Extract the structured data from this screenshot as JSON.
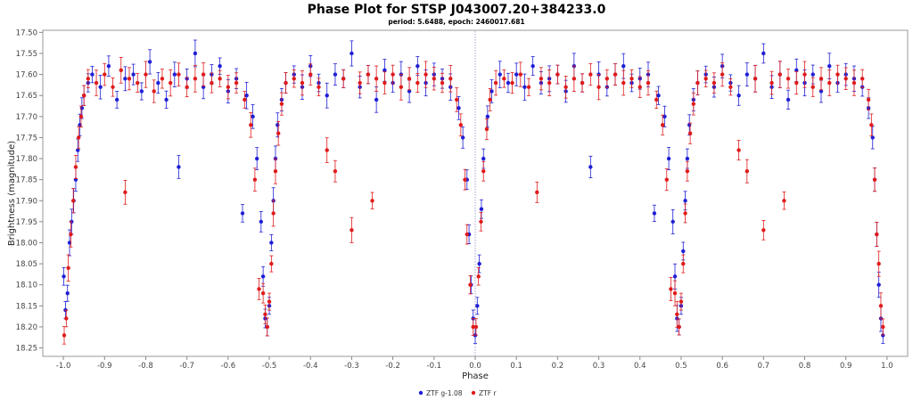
{
  "chart_data": {
    "type": "scatter",
    "title": "Phase Plot for STSP J043007.20+384233.0",
    "subtitle": "period: 5.6488, epoch: 2460017.681",
    "xlabel": "Phase",
    "ylabel": "Brightness (magnitude)",
    "xlim": [
      -1.05,
      1.05
    ],
    "ylim": [
      18.27,
      17.495
    ],
    "y_inverted": true,
    "x_ticks": [
      -1.0,
      -0.9,
      -0.8,
      -0.7,
      -0.6,
      -0.5,
      -0.4,
      -0.3,
      -0.2,
      -0.1,
      0.0,
      0.1,
      0.2,
      0.3,
      0.4,
      0.5,
      0.6,
      0.7,
      0.8,
      0.9,
      1.0
    ],
    "x_tick_labels": [
      "-1.0",
      "-0.9",
      "-0.8",
      "-0.7",
      "-0.6",
      "-0.5",
      "-0.4",
      "-0.3",
      "-0.2",
      "-0.1",
      "0.0",
      "0.1",
      "0.2",
      "0.3",
      "0.4",
      "0.5",
      "0.6",
      "0.7",
      "0.8",
      "0.9",
      "1.0"
    ],
    "y_ticks": [
      17.5,
      17.55,
      17.6,
      17.65,
      17.7,
      17.75,
      17.8,
      17.85,
      17.9,
      17.95,
      18.0,
      18.05,
      18.1,
      18.15,
      18.2,
      18.25
    ],
    "y_tick_labels": [
      "17.50",
      "17.55",
      "17.60",
      "17.65",
      "17.70",
      "17.75",
      "17.80",
      "17.85",
      "17.90",
      "17.95",
      "18.00",
      "18.05",
      "18.10",
      "18.15",
      "18.20",
      "18.25"
    ],
    "grid": false,
    "reference_line_x": 0.0,
    "legend_position": "bottom-center",
    "error_bars": true,
    "series": [
      {
        "name": "ZTF g-1.08",
        "color": "#1f1fd6",
        "points": [
          [
            -0.999,
            18.08
          ],
          [
            -0.995,
            18.16
          ],
          [
            -0.99,
            18.12
          ],
          [
            -0.985,
            18.0
          ],
          [
            -0.98,
            17.95
          ],
          [
            -0.975,
            17.9
          ],
          [
            -0.97,
            17.85
          ],
          [
            -0.965,
            17.78
          ],
          [
            -0.96,
            17.72
          ],
          [
            -0.955,
            17.68
          ],
          [
            -0.95,
            17.65
          ],
          [
            -0.94,
            17.62
          ],
          [
            -0.93,
            17.6
          ],
          [
            -0.91,
            17.63
          ],
          [
            -0.89,
            17.58
          ],
          [
            -0.87,
            17.66
          ],
          [
            -0.85,
            17.61
          ],
          [
            -0.83,
            17.6
          ],
          [
            -0.81,
            17.64
          ],
          [
            -0.79,
            17.57
          ],
          [
            -0.77,
            17.62
          ],
          [
            -0.75,
            17.66
          ],
          [
            -0.73,
            17.6
          ],
          [
            -0.72,
            17.82
          ],
          [
            -0.7,
            17.61
          ],
          [
            -0.68,
            17.55
          ],
          [
            -0.66,
            17.63
          ],
          [
            -0.64,
            17.6
          ],
          [
            -0.62,
            17.58
          ],
          [
            -0.6,
            17.64
          ],
          [
            -0.58,
            17.61
          ],
          [
            -0.565,
            17.93
          ],
          [
            -0.555,
            17.65
          ],
          [
            -0.54,
            17.7
          ],
          [
            -0.53,
            17.8
          ],
          [
            -0.52,
            17.95
          ],
          [
            -0.515,
            18.08
          ],
          [
            -0.51,
            18.18
          ],
          [
            -0.505,
            18.2
          ],
          [
            -0.5,
            18.15
          ],
          [
            -0.495,
            18.0
          ],
          [
            -0.49,
            17.9
          ],
          [
            -0.485,
            17.8
          ],
          [
            -0.48,
            17.72
          ],
          [
            -0.47,
            17.66
          ],
          [
            -0.46,
            17.62
          ],
          [
            -0.44,
            17.6
          ],
          [
            -0.42,
            17.63
          ],
          [
            -0.4,
            17.58
          ],
          [
            -0.38,
            17.62
          ],
          [
            -0.36,
            17.65
          ],
          [
            -0.34,
            17.6
          ],
          [
            -0.32,
            17.61
          ],
          [
            -0.3,
            17.55
          ],
          [
            -0.28,
            17.63
          ],
          [
            -0.26,
            17.6
          ],
          [
            -0.24,
            17.66
          ],
          [
            -0.22,
            17.59
          ],
          [
            -0.2,
            17.62
          ],
          [
            -0.18,
            17.6
          ],
          [
            -0.16,
            17.64
          ],
          [
            -0.14,
            17.58
          ],
          [
            -0.12,
            17.62
          ],
          [
            -0.1,
            17.6
          ],
          [
            -0.08,
            17.61
          ],
          [
            -0.06,
            17.63
          ],
          [
            -0.04,
            17.68
          ],
          [
            -0.03,
            17.75
          ],
          [
            -0.02,
            17.85
          ],
          [
            -0.015,
            17.98
          ],
          [
            -0.01,
            18.1
          ],
          [
            -0.005,
            18.18
          ],
          [
            0.0,
            18.22
          ],
          [
            0.005,
            18.15
          ],
          [
            0.01,
            18.05
          ],
          [
            0.015,
            17.92
          ],
          [
            0.02,
            17.8
          ],
          [
            0.03,
            17.7
          ],
          [
            0.04,
            17.64
          ],
          [
            0.06,
            17.6
          ],
          [
            0.08,
            17.62
          ],
          [
            0.1,
            17.6
          ],
          [
            0.12,
            17.63
          ],
          [
            0.14,
            17.58
          ],
          [
            0.16,
            17.62
          ],
          [
            0.18,
            17.61
          ],
          [
            0.2,
            17.6
          ],
          [
            0.22,
            17.64
          ],
          [
            0.24,
            17.58
          ],
          [
            0.26,
            17.62
          ],
          [
            0.28,
            17.82
          ],
          [
            0.3,
            17.6
          ],
          [
            0.32,
            17.63
          ],
          [
            0.34,
            17.6
          ],
          [
            0.36,
            17.58
          ],
          [
            0.38,
            17.62
          ],
          [
            0.4,
            17.61
          ],
          [
            0.42,
            17.6
          ],
          [
            0.435,
            17.93
          ],
          [
            0.445,
            17.65
          ],
          [
            0.46,
            17.7
          ],
          [
            0.47,
            17.8
          ],
          [
            0.48,
            17.95
          ],
          [
            0.485,
            18.08
          ],
          [
            0.49,
            18.18
          ],
          [
            0.495,
            18.2
          ],
          [
            0.5,
            18.15
          ],
          [
            0.505,
            18.02
          ],
          [
            0.51,
            17.9
          ],
          [
            0.515,
            17.8
          ],
          [
            0.52,
            17.72
          ],
          [
            0.53,
            17.66
          ],
          [
            0.54,
            17.62
          ],
          [
            0.56,
            17.6
          ],
          [
            0.58,
            17.63
          ],
          [
            0.6,
            17.58
          ],
          [
            0.62,
            17.62
          ],
          [
            0.64,
            17.65
          ],
          [
            0.66,
            17.6
          ],
          [
            0.68,
            17.61
          ],
          [
            0.7,
            17.55
          ],
          [
            0.72,
            17.63
          ],
          [
            0.74,
            17.6
          ],
          [
            0.76,
            17.66
          ],
          [
            0.78,
            17.59
          ],
          [
            0.8,
            17.62
          ],
          [
            0.82,
            17.6
          ],
          [
            0.84,
            17.64
          ],
          [
            0.86,
            17.58
          ],
          [
            0.88,
            17.62
          ],
          [
            0.9,
            17.6
          ],
          [
            0.92,
            17.61
          ],
          [
            0.94,
            17.63
          ],
          [
            0.955,
            17.68
          ],
          [
            0.965,
            17.75
          ],
          [
            0.97,
            17.85
          ],
          [
            0.975,
            17.98
          ],
          [
            0.98,
            18.1
          ],
          [
            0.985,
            18.18
          ],
          [
            0.99,
            18.22
          ]
        ]
      },
      {
        "name": "ZTF r",
        "color": "#e01b1b",
        "points": [
          [
            -0.998,
            18.22
          ],
          [
            -0.993,
            18.18
          ],
          [
            -0.988,
            18.06
          ],
          [
            -0.982,
            17.98
          ],
          [
            -0.976,
            17.9
          ],
          [
            -0.97,
            17.82
          ],
          [
            -0.963,
            17.75
          ],
          [
            -0.957,
            17.7
          ],
          [
            -0.95,
            17.65
          ],
          [
            -0.94,
            17.61
          ],
          [
            -0.92,
            17.62
          ],
          [
            -0.9,
            17.6
          ],
          [
            -0.88,
            17.63
          ],
          [
            -0.86,
            17.59
          ],
          [
            -0.85,
            17.88
          ],
          [
            -0.84,
            17.61
          ],
          [
            -0.82,
            17.62
          ],
          [
            -0.8,
            17.6
          ],
          [
            -0.78,
            17.64
          ],
          [
            -0.76,
            17.61
          ],
          [
            -0.74,
            17.62
          ],
          [
            -0.72,
            17.6
          ],
          [
            -0.7,
            17.63
          ],
          [
            -0.68,
            17.61
          ],
          [
            -0.66,
            17.6
          ],
          [
            -0.64,
            17.62
          ],
          [
            -0.62,
            17.61
          ],
          [
            -0.6,
            17.63
          ],
          [
            -0.58,
            17.62
          ],
          [
            -0.56,
            17.66
          ],
          [
            -0.545,
            17.72
          ],
          [
            -0.535,
            17.85
          ],
          [
            -0.525,
            18.11
          ],
          [
            -0.515,
            18.12
          ],
          [
            -0.51,
            18.17
          ],
          [
            -0.505,
            18.2
          ],
          [
            -0.5,
            18.14
          ],
          [
            -0.495,
            18.05
          ],
          [
            -0.49,
            17.93
          ],
          [
            -0.485,
            17.83
          ],
          [
            -0.478,
            17.74
          ],
          [
            -0.47,
            17.67
          ],
          [
            -0.46,
            17.62
          ],
          [
            -0.44,
            17.61
          ],
          [
            -0.42,
            17.62
          ],
          [
            -0.4,
            17.6
          ],
          [
            -0.38,
            17.63
          ],
          [
            -0.36,
            17.78
          ],
          [
            -0.34,
            17.83
          ],
          [
            -0.32,
            17.61
          ],
          [
            -0.3,
            17.97
          ],
          [
            -0.28,
            17.62
          ],
          [
            -0.26,
            17.6
          ],
          [
            -0.25,
            17.9
          ],
          [
            -0.24,
            17.61
          ],
          [
            -0.22,
            17.62
          ],
          [
            -0.2,
            17.6
          ],
          [
            -0.18,
            17.63
          ],
          [
            -0.16,
            17.61
          ],
          [
            -0.14,
            17.62
          ],
          [
            -0.12,
            17.6
          ],
          [
            -0.1,
            17.61
          ],
          [
            -0.08,
            17.62
          ],
          [
            -0.06,
            17.61
          ],
          [
            -0.045,
            17.66
          ],
          [
            -0.035,
            17.72
          ],
          [
            -0.025,
            17.85
          ],
          [
            -0.02,
            17.98
          ],
          [
            -0.012,
            18.1
          ],
          [
            -0.005,
            18.2
          ],
          [
            0.002,
            18.2
          ],
          [
            0.008,
            18.08
          ],
          [
            0.014,
            17.95
          ],
          [
            0.02,
            17.83
          ],
          [
            0.028,
            17.73
          ],
          [
            0.036,
            17.66
          ],
          [
            0.05,
            17.62
          ],
          [
            0.07,
            17.61
          ],
          [
            0.09,
            17.62
          ],
          [
            0.11,
            17.6
          ],
          [
            0.13,
            17.63
          ],
          [
            0.15,
            17.88
          ],
          [
            0.16,
            17.61
          ],
          [
            0.18,
            17.62
          ],
          [
            0.2,
            17.6
          ],
          [
            0.22,
            17.63
          ],
          [
            0.24,
            17.61
          ],
          [
            0.26,
            17.62
          ],
          [
            0.28,
            17.6
          ],
          [
            0.3,
            17.63
          ],
          [
            0.32,
            17.61
          ],
          [
            0.34,
            17.6
          ],
          [
            0.36,
            17.62
          ],
          [
            0.38,
            17.61
          ],
          [
            0.4,
            17.63
          ],
          [
            0.42,
            17.62
          ],
          [
            0.44,
            17.66
          ],
          [
            0.455,
            17.72
          ],
          [
            0.465,
            17.85
          ],
          [
            0.475,
            18.11
          ],
          [
            0.485,
            18.12
          ],
          [
            0.49,
            18.17
          ],
          [
            0.495,
            18.2
          ],
          [
            0.5,
            18.14
          ],
          [
            0.505,
            18.05
          ],
          [
            0.51,
            17.93
          ],
          [
            0.515,
            17.83
          ],
          [
            0.522,
            17.74
          ],
          [
            0.53,
            17.67
          ],
          [
            0.54,
            17.62
          ],
          [
            0.56,
            17.61
          ],
          [
            0.58,
            17.62
          ],
          [
            0.6,
            17.6
          ],
          [
            0.62,
            17.63
          ],
          [
            0.64,
            17.78
          ],
          [
            0.66,
            17.83
          ],
          [
            0.68,
            17.61
          ],
          [
            0.7,
            17.97
          ],
          [
            0.72,
            17.62
          ],
          [
            0.74,
            17.6
          ],
          [
            0.75,
            17.9
          ],
          [
            0.76,
            17.61
          ],
          [
            0.78,
            17.62
          ],
          [
            0.8,
            17.6
          ],
          [
            0.82,
            17.63
          ],
          [
            0.84,
            17.61
          ],
          [
            0.86,
            17.62
          ],
          [
            0.88,
            17.6
          ],
          [
            0.9,
            17.61
          ],
          [
            0.92,
            17.62
          ],
          [
            0.94,
            17.61
          ],
          [
            0.955,
            17.66
          ],
          [
            0.962,
            17.72
          ],
          [
            0.97,
            17.85
          ],
          [
            0.975,
            17.98
          ],
          [
            0.98,
            18.05
          ],
          [
            0.985,
            18.15
          ],
          [
            0.99,
            18.2
          ]
        ]
      }
    ]
  }
}
